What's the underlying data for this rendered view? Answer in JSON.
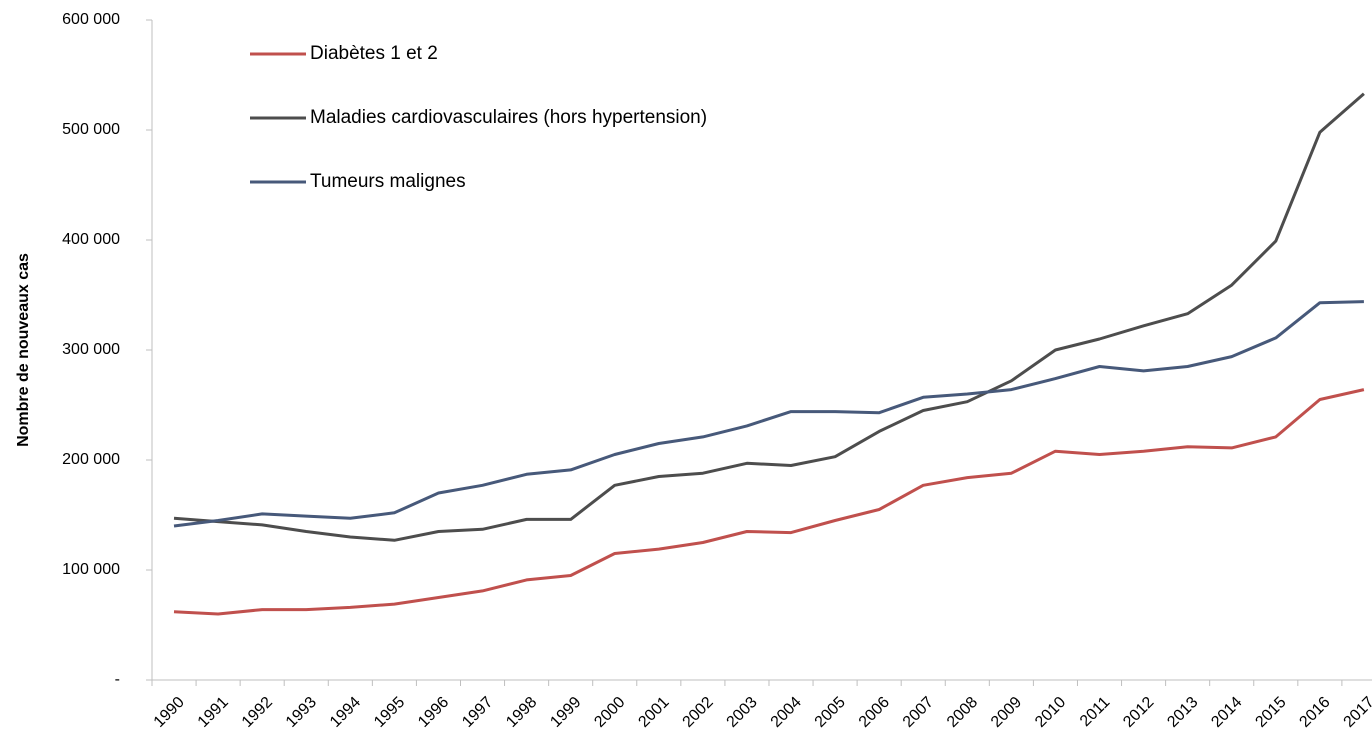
{
  "chart_data": {
    "type": "line",
    "y_label": "Nombre de nouveaux cas",
    "categories": [
      "1990",
      "1991",
      "1992",
      "1993",
      "1994",
      "1995",
      "1996",
      "1997",
      "1998",
      "1999",
      "2000",
      "2001",
      "2002",
      "2003",
      "2004",
      "2005",
      "2006",
      "2007",
      "2008",
      "2009",
      "2010",
      "2011",
      "2012",
      "2013",
      "2014",
      "2015",
      "2016",
      "2017"
    ],
    "series": [
      {
        "name": "Diabètes 1 et 2",
        "color": "#c0504d",
        "values": [
          62000,
          60000,
          64000,
          64000,
          66000,
          69000,
          75000,
          81000,
          91000,
          95000,
          115000,
          119000,
          125000,
          135000,
          134000,
          145000,
          155000,
          177000,
          184000,
          188000,
          208000,
          205000,
          208000,
          212000,
          211000,
          221000,
          255000,
          264000
        ]
      },
      {
        "name": "Maladies cardiovasculaires (hors hypertension)",
        "color": "#4d4d4d",
        "values": [
          147000,
          144000,
          141000,
          135000,
          130000,
          127000,
          135000,
          137000,
          146000,
          146000,
          177000,
          185000,
          188000,
          197000,
          195000,
          203000,
          226000,
          245000,
          253000,
          272000,
          300000,
          310000,
          322000,
          333000,
          359000,
          399000,
          498000,
          533000
        ]
      },
      {
        "name": "Tumeurs malignes",
        "color": "#47597a",
        "values": [
          140000,
          145000,
          151000,
          149000,
          147000,
          152000,
          170000,
          177000,
          187000,
          191000,
          205000,
          215000,
          221000,
          231000,
          244000,
          244000,
          243000,
          257000,
          260000,
          264000,
          274000,
          285000,
          281000,
          285000,
          294000,
          311000,
          343000,
          344000
        ]
      }
    ],
    "ylim": [
      0,
      600000
    ],
    "yticks": [
      {
        "value": 0,
        "label": "-"
      },
      {
        "value": 100000,
        "label": "100 000"
      },
      {
        "value": 200000,
        "label": "200 000"
      },
      {
        "value": 300000,
        "label": "300 000"
      },
      {
        "value": 400000,
        "label": "400 000"
      },
      {
        "value": 500000,
        "label": "500 000"
      },
      {
        "value": 600000,
        "label": "600 000"
      }
    ],
    "grid": false,
    "legend": "upper left"
  }
}
